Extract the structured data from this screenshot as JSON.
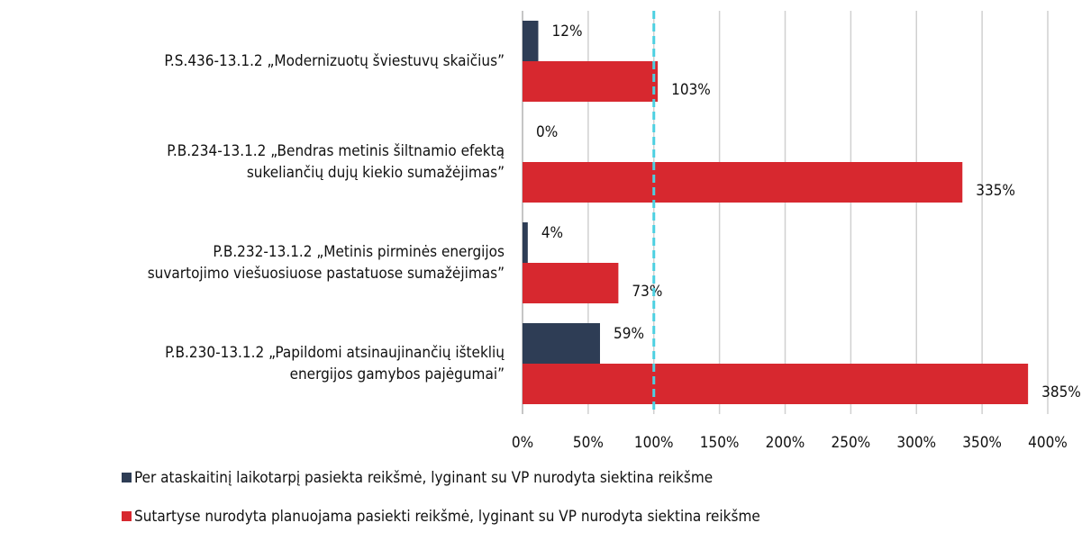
{
  "chart_data": {
    "type": "hbar",
    "categories": [
      [
        "P.S.436-13.1.2 „Modernizuotų šviestuvų skaičius”"
      ],
      [
        "P.B.234-13.1.2 „Bendras metinis šiltnamio efektą",
        "sukeliančių dujų kiekio sumažėjimas”"
      ],
      [
        "P.B.232-13.1.2 „Metinis pirminės energijos",
        "suvartojimo viešuosiuose pastatuose sumažėjimas”"
      ],
      [
        "P.B.230-13.1.2 „Papildomi atsinaujinančių išteklių",
        "energijos gamybos pajėgumai”"
      ]
    ],
    "series": [
      {
        "name": "Per ataskaitinį laikotarpį pasiekta reikšmė, lyginant su VP nurodyta siektina reikšme",
        "color": "#2e3d55",
        "values": [
          12,
          0,
          4,
          59
        ],
        "value_labels": [
          "12%",
          "0%",
          "4%",
          "59%"
        ]
      },
      {
        "name": "Sutartyse nurodyta planuojama pasiekti reikšmė, lyginant su VP nurodyta siektina reikšme",
        "color": "#d7282f",
        "values": [
          103,
          335,
          73,
          385
        ],
        "value_labels": [
          "103%",
          "335%",
          "73%",
          "385%"
        ]
      }
    ],
    "xlim": [
      0,
      400
    ],
    "xticks": [
      {
        "value": 0,
        "label": "0%"
      },
      {
        "value": 50,
        "label": "50%"
      },
      {
        "value": 100,
        "label": "100%"
      },
      {
        "value": 150,
        "label": "150%"
      },
      {
        "value": 200,
        "label": "200%"
      },
      {
        "value": 250,
        "label": "250%"
      },
      {
        "value": 300,
        "label": "300%"
      },
      {
        "value": 350,
        "label": "350%"
      },
      {
        "value": 400,
        "label": "400%"
      }
    ],
    "grid": true,
    "reference_line": {
      "value": 100,
      "color": "#4dd0e1"
    },
    "legend": "bottom"
  }
}
